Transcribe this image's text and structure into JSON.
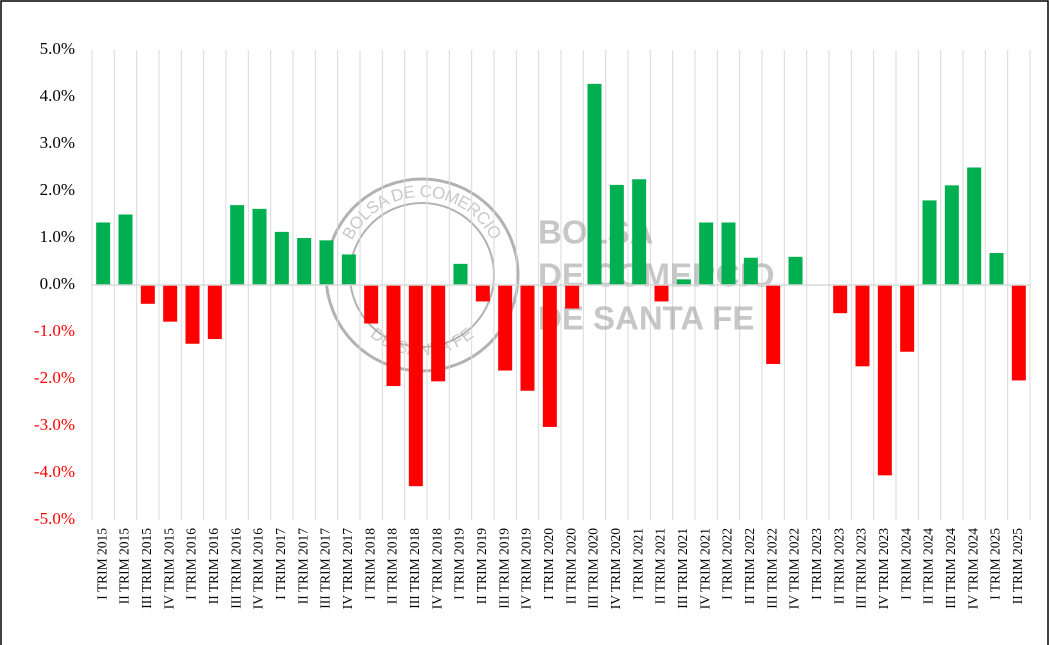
{
  "chart_data": {
    "type": "bar",
    "categories": [
      "I TRIM 2015",
      "II TRIM 2015",
      "III TRIM 2015",
      "IV TRIM 2015",
      "I TRIM 2016",
      "II TRIM 2016",
      "III TRIM 2016",
      "IV TRIM 2016",
      "I TRIM 2017",
      "II TRIM 2017",
      "III TRIM 2017",
      "IV TRIM 2017",
      "I TRIM 2018",
      "II TRIM 2018",
      "III TRIM 2018",
      "IV TRIM 2018",
      "I TRIM 2019",
      "II TRIM 2019",
      "III TRIM 2019",
      "IV TRIM 2019",
      "I TRIM 2020",
      "II TRIM 2020",
      "III TRIM 2020",
      "IV TRIM 2020",
      "I TRIM 2021",
      "II TRIM 2021",
      "III TRIM 2021",
      "IV TRIM 2021",
      "I TRIM 2022",
      "II TRIM 2022",
      "III TRIM 2022",
      "IV TRIM 2022",
      "I TRIM 2023",
      "II TRIM 2023",
      "III TRIM 2023",
      "IV TRIM 2023",
      "I TRIM 2024",
      "II TRIM 2024",
      "III TRIM 2024",
      "IV TRIM 2024",
      "I TRIM 2025",
      "II TRIM 2025"
    ],
    "values": [
      1.33,
      1.5,
      -0.4,
      -0.78,
      -1.25,
      -1.15,
      1.7,
      1.62,
      1.13,
      1.0,
      0.95,
      0.65,
      -0.82,
      -2.15,
      -4.28,
      -2.05,
      0.45,
      -0.35,
      -1.82,
      -2.25,
      -3.02,
      -0.5,
      4.28,
      2.13,
      2.25,
      -0.35,
      0.12,
      1.33,
      1.33,
      0.58,
      -1.68,
      0.6,
      0,
      -0.6,
      -1.73,
      -4.05,
      -1.42,
      1.8,
      2.12,
      2.5,
      0.68,
      -2.03
    ],
    "positive_color": "#00b050",
    "negative_color": "#ff0000",
    "ylim": [
      -5,
      5
    ],
    "yticks": [
      {
        "value": 5,
        "label": "5.0%"
      },
      {
        "value": 4,
        "label": "4.0%"
      },
      {
        "value": 3,
        "label": "3.0%"
      },
      {
        "value": 2,
        "label": "2.0%"
      },
      {
        "value": 1,
        "label": "1.0%"
      },
      {
        "value": 0,
        "label": "0.0%"
      },
      {
        "value": -1,
        "label": "-1.0%"
      },
      {
        "value": -2,
        "label": "-2.0%"
      },
      {
        "value": -3,
        "label": "-3.0%"
      },
      {
        "value": -4,
        "label": "-4.0%"
      },
      {
        "value": -5,
        "label": "-5.0%"
      }
    ],
    "watermark": [
      "BOLSA",
      "DE COMERCIO",
      "DE SANTA FE"
    ],
    "seal_top": "BOLSA DE COMERCIO",
    "seal_bottom": "DE SANTA FE"
  }
}
